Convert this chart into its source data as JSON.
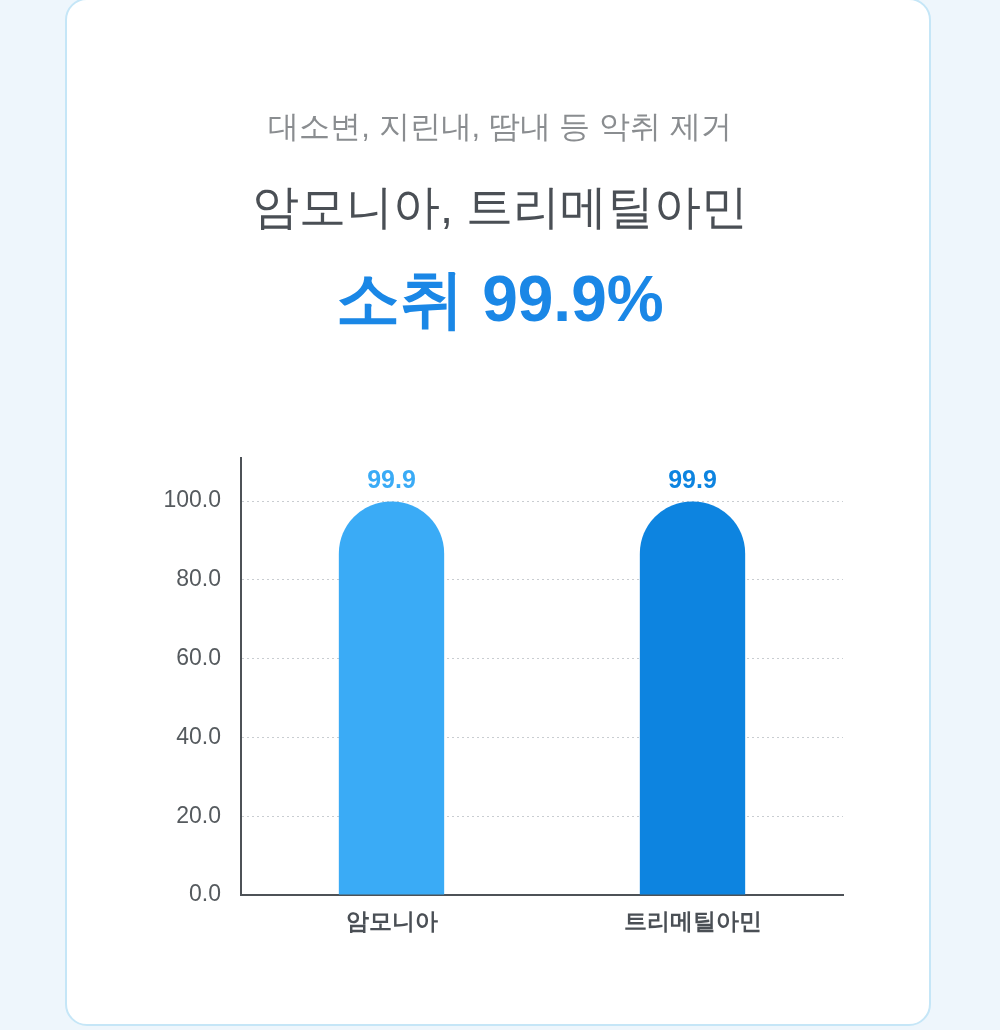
{
  "chart_data": {
    "type": "bar",
    "subtitle": "대소변, 지린내, 땀내 등 악취 제거",
    "title": "암모니아, 트리메틸아민",
    "annotations": [
      "소취 99.9%"
    ],
    "categories": [
      "암모니아",
      "트리메틸아민"
    ],
    "values": [
      99.9,
      99.9
    ],
    "colors": [
      "#3aabf6",
      "#0d84e0"
    ],
    "data_labels": true,
    "ylim": [
      0,
      111
    ],
    "yticks": [
      {
        "value": 0,
        "label": "0.0"
      },
      {
        "value": 20,
        "label": "20.0"
      },
      {
        "value": 40,
        "label": "40.0"
      },
      {
        "value": 60,
        "label": "60.0"
      },
      {
        "value": 80,
        "label": "80.0"
      },
      {
        "value": 100,
        "label": "100.0"
      }
    ],
    "grid": "y",
    "legend": false
  }
}
